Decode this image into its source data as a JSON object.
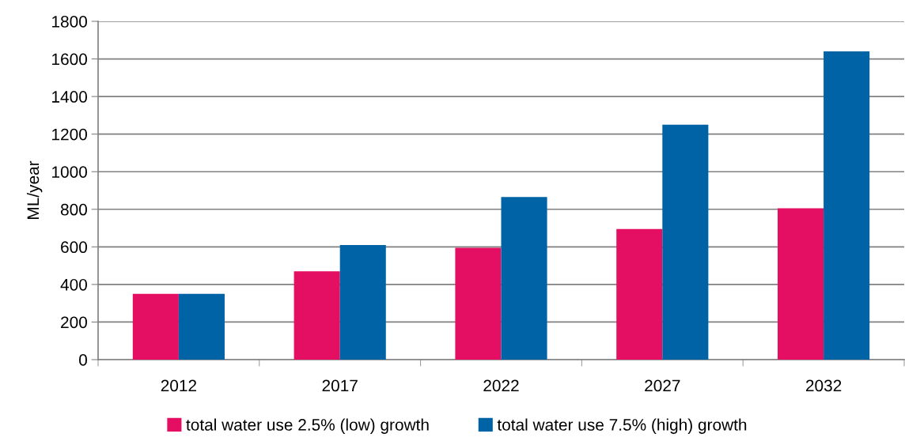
{
  "chart_data": {
    "type": "bar",
    "ylabel": "ML/year",
    "categories": [
      "2012",
      "2017",
      "2022",
      "2027",
      "2032"
    ],
    "series": [
      {
        "name": "total water use 2.5% (low) growth",
        "color": "#e40e62",
        "values": [
          350,
          470,
          595,
          695,
          805
        ]
      },
      {
        "name": "total water use 7.5% (high) growth",
        "color": "#0063a6",
        "values": [
          350,
          610,
          865,
          1250,
          1640
        ]
      }
    ],
    "ylim": [
      0,
      1800
    ],
    "yticks": [
      0,
      200,
      400,
      600,
      800,
      1000,
      1200,
      1400,
      1600,
      1800
    ],
    "grid": "y",
    "legend": "bottom"
  }
}
